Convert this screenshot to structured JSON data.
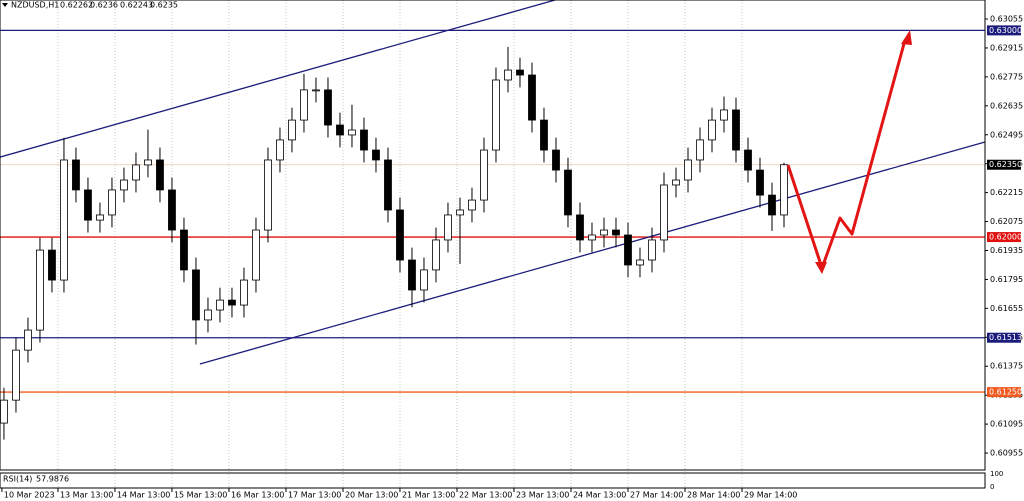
{
  "chart_data": {
    "type": "candlestick",
    "symbol": "NZDUSD,H1",
    "quote": [
      0.62262,
      0.6236,
      0.62243,
      0.6235
    ],
    "x": [
      0,
      1,
      2,
      3,
      4,
      5,
      6,
      7,
      8,
      9,
      10,
      11,
      12,
      13,
      14,
      15,
      16,
      17,
      18,
      19,
      20,
      21,
      22,
      23,
      24,
      25,
      26,
      27,
      28,
      29,
      30,
      31,
      32,
      33,
      34,
      35,
      36,
      37,
      38,
      39,
      40,
      41,
      42,
      43,
      44,
      45,
      46,
      47,
      48,
      49,
      50,
      51,
      52,
      53,
      54,
      55,
      56,
      57,
      58,
      59,
      60,
      61,
      62,
      63,
      64,
      65
    ],
    "open": [
      0.611,
      0.61211,
      0.61453,
      0.6155,
      0.61937,
      0.61792,
      0.62373,
      0.62228,
      0.62082,
      0.62107,
      0.62228,
      0.62276,
      0.62349,
      0.62373,
      0.62228,
      0.62034,
      0.61841,
      0.61599,
      0.61647,
      0.61695,
      0.61671,
      0.61792,
      0.62034,
      0.62373,
      0.6247,
      0.62566,
      0.62712,
      0.62712,
      0.62542,
      0.62494,
      0.62518,
      0.62421,
      0.62373,
      0.62131,
      0.61889,
      0.61744,
      0.61841,
      0.61986,
      0.62107,
      0.62131,
      0.62179,
      0.62421,
      0.6276,
      0.62808,
      0.62784,
      0.62566,
      0.62421,
      0.62324,
      0.62107,
      0.61986,
      0.6201,
      0.62034,
      0.6201,
      0.61865,
      0.61889,
      0.61986,
      0.62252,
      0.62276,
      0.62373,
      0.6247,
      0.62566,
      0.62615,
      0.62421,
      0.62324,
      0.62203,
      0.62107
    ],
    "high": [
      0.61271,
      0.61513,
      0.6161,
      0.61997,
      0.61997,
      0.6248,
      0.62433,
      0.62288,
      0.62167,
      0.62288,
      0.62336,
      0.62409,
      0.6252,
      0.62433,
      0.62288,
      0.62094,
      0.61901,
      0.61707,
      0.61755,
      0.61755,
      0.61852,
      0.62094,
      0.62433,
      0.6253,
      0.62626,
      0.6279,
      0.62772,
      0.62772,
      0.62602,
      0.6264,
      0.62578,
      0.62481,
      0.62433,
      0.62191,
      0.61949,
      0.61901,
      0.62046,
      0.62167,
      0.62191,
      0.62239,
      0.62481,
      0.6282,
      0.6292,
      0.62868,
      0.62844,
      0.62626,
      0.62481,
      0.62384,
      0.62167,
      0.6207,
      0.62094,
      0.62094,
      0.6207,
      0.61949,
      0.62046,
      0.62312,
      0.62336,
      0.62433,
      0.6253,
      0.62626,
      0.6268,
      0.62675,
      0.62481,
      0.62384,
      0.62263,
      0.6236
    ],
    "low": [
      0.6102,
      0.61151,
      0.61393,
      0.6149,
      0.61732,
      0.61732,
      0.62168,
      0.62022,
      0.62022,
      0.62047,
      0.62168,
      0.62216,
      0.62289,
      0.62168,
      0.61974,
      0.61781,
      0.6148,
      0.61539,
      0.61587,
      0.61611,
      0.61611,
      0.61732,
      0.61974,
      0.62313,
      0.6241,
      0.62506,
      0.62652,
      0.62482,
      0.62434,
      0.62434,
      0.62361,
      0.62313,
      0.62071,
      0.61829,
      0.6166,
      0.61684,
      0.61781,
      0.61926,
      0.6187,
      0.62071,
      0.62119,
      0.62361,
      0.627,
      0.62724,
      0.62506,
      0.62361,
      0.62264,
      0.62047,
      0.61926,
      0.61926,
      0.6195,
      0.6195,
      0.61805,
      0.61805,
      0.61829,
      0.61926,
      0.62192,
      0.62216,
      0.62313,
      0.6241,
      0.62506,
      0.62361,
      0.62264,
      0.62143,
      0.6203,
      0.62047
    ],
    "close": [
      0.61211,
      0.61453,
      0.6155,
      0.61937,
      0.61792,
      0.62373,
      0.62228,
      0.62082,
      0.62107,
      0.62228,
      0.62276,
      0.62349,
      0.62373,
      0.62228,
      0.62034,
      0.61841,
      0.61599,
      0.61647,
      0.61695,
      0.61671,
      0.61792,
      0.62034,
      0.62373,
      0.6247,
      0.62566,
      0.62712,
      0.62712,
      0.62542,
      0.62494,
      0.62518,
      0.62421,
      0.62373,
      0.62131,
      0.61889,
      0.61744,
      0.61841,
      0.61986,
      0.62107,
      0.62131,
      0.62179,
      0.62421,
      0.6276,
      0.62808,
      0.62784,
      0.62566,
      0.62421,
      0.62324,
      0.62107,
      0.61986,
      0.6201,
      0.62034,
      0.6201,
      0.61865,
      0.61889,
      0.61986,
      0.62252,
      0.62276,
      0.62373,
      0.6247,
      0.62566,
      0.62615,
      0.62421,
      0.62324,
      0.62203,
      0.62107,
      0.6235
    ],
    "bull_color": "#ffffff",
    "bear_color": "#000000",
    "xlim": [
      -0.33,
      81.75
    ],
    "xticks": [
      {
        "value": -0.17,
        "label": "10 Mar 2023"
      },
      {
        "value": 4.5,
        "label": "13 Mar 13:00"
      },
      {
        "value": 9.25,
        "label": "14 Mar 13:00"
      },
      {
        "value": 14,
        "label": "15 Mar 13:00"
      },
      {
        "value": 18.75,
        "label": "16 Mar 13:00"
      },
      {
        "value": 23.5,
        "label": "17 Mar 13:00"
      },
      {
        "value": 28.25,
        "label": "20 Mar 13:00"
      },
      {
        "value": 33,
        "label": "21 Mar 13:00"
      },
      {
        "value": 37.75,
        "label": "22 Mar 13:00"
      },
      {
        "value": 42.5,
        "label": "23 Mar 13:00"
      },
      {
        "value": 47.25,
        "label": "24 Mar 13:00"
      },
      {
        "value": 52,
        "label": "27 Mar 14:00"
      },
      {
        "value": 56.75,
        "label": "28 Mar 14:00"
      },
      {
        "value": 61.5,
        "label": "29 Mar 14:00"
      }
    ],
    "ylim": [
      0.60873,
      0.63147
    ],
    "yticks": [
      0.63055,
      0.62915,
      0.62775,
      0.62635,
      0.62495,
      0.62355,
      0.62215,
      0.62075,
      0.61935,
      0.61795,
      0.61655,
      0.61515,
      0.61375,
      0.61235,
      0.61095,
      0.60955
    ],
    "grid": true,
    "levels": [
      {
        "value": 0.63,
        "label": "0.63000",
        "color": "#1c1c7c"
      },
      {
        "value": 0.62,
        "label": "0.62000",
        "color": "#e01010"
      },
      {
        "value": 0.61513,
        "label": "0.61513",
        "color": "#1c1c7c"
      },
      {
        "value": 0.6125,
        "label": "0.61250",
        "color": "#f05a1e"
      }
    ],
    "current_price": {
      "value": 0.6235,
      "label": "0.62350",
      "color": "#000000"
    },
    "trendlines": [
      {
        "x": [
          -0.33,
          45.92
        ],
        "y": [
          0.62387,
          0.63147
        ],
        "color": "#1c1c7c"
      },
      {
        "x": [
          16.33,
          81.75
        ],
        "y": [
          0.61386,
          0.6246
        ],
        "color": "#1c1c7c"
      }
    ],
    "indicator": {
      "name": "RSI(14)",
      "value": 57.9876,
      "yticks": [
        100,
        0
      ]
    }
  }
}
